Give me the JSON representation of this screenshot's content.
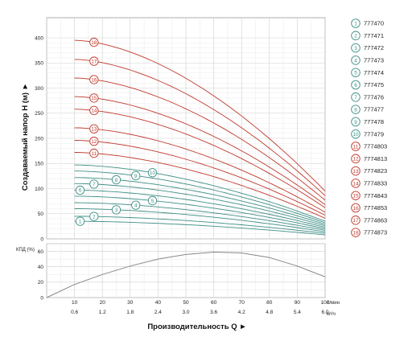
{
  "chart_data": [
    {
      "type": "line",
      "title": "",
      "ylabel": "Создаваемый напор H (м) ►",
      "xlabel": "",
      "x_unit": "л/мин",
      "ylim": [
        0,
        440
      ],
      "yticks": [
        "0",
        "50",
        "100",
        "150",
        "200",
        "250",
        "300",
        "350",
        "400"
      ],
      "xlim": [
        0,
        100
      ],
      "grid": true,
      "legend_position": "right",
      "colors": {
        "green_series": "#3f8f86",
        "red_series": "#c0392b"
      },
      "series": [
        {
          "name": "777470",
          "marker": "1",
          "color": "#3f8f86",
          "x": [
            10,
            100
          ],
          "y": [
            35,
            8
          ]
        },
        {
          "name": "777471",
          "marker": "2",
          "color": "#3f8f86",
          "x": [
            10,
            100
          ],
          "y": [
            45,
            11
          ]
        },
        {
          "name": "777472",
          "marker": "3",
          "color": "#3f8f86",
          "x": [
            10,
            100
          ],
          "y": [
            60,
            14
          ]
        },
        {
          "name": "777473",
          "marker": "4",
          "color": "#3f8f86",
          "x": [
            10,
            100
          ],
          "y": [
            72,
            17
          ]
        },
        {
          "name": "777474",
          "marker": "5",
          "color": "#3f8f86",
          "x": [
            10,
            100
          ],
          "y": [
            85,
            20
          ]
        },
        {
          "name": "777475",
          "marker": "6",
          "color": "#3f8f86",
          "x": [
            10,
            100
          ],
          "y": [
            97,
            23
          ]
        },
        {
          "name": "777476",
          "marker": "7",
          "color": "#3f8f86",
          "x": [
            10,
            100
          ],
          "y": [
            110,
            26
          ]
        },
        {
          "name": "777477",
          "marker": "8",
          "color": "#3f8f86",
          "x": [
            10,
            100
          ],
          "y": [
            122,
            29
          ]
        },
        {
          "name": "777478",
          "marker": "9",
          "color": "#3f8f86",
          "x": [
            10,
            100
          ],
          "y": [
            135,
            32
          ]
        },
        {
          "name": "777479",
          "marker": "10",
          "color": "#3f8f86",
          "x": [
            10,
            100
          ],
          "y": [
            147,
            35
          ]
        },
        {
          "name": "7774803",
          "marker": "11",
          "color": "#c0392b",
          "x": [
            10,
            100
          ],
          "y": [
            172,
            41
          ]
        },
        {
          "name": "7774813",
          "marker": "12",
          "color": "#c0392b",
          "x": [
            10,
            100
          ],
          "y": [
            196,
            47
          ]
        },
        {
          "name": "7774823",
          "marker": "13",
          "color": "#c0392b",
          "x": [
            10,
            100
          ],
          "y": [
            221,
            53
          ]
        },
        {
          "name": "7774833",
          "marker": "14",
          "color": "#c0392b",
          "x": [
            10,
            100
          ],
          "y": [
            258,
            62
          ]
        },
        {
          "name": "7774843",
          "marker": "15",
          "color": "#c0392b",
          "x": [
            10,
            100
          ],
          "y": [
            283,
            68
          ]
        },
        {
          "name": "7774853",
          "marker": "16",
          "color": "#c0392b",
          "x": [
            10,
            100
          ],
          "y": [
            320,
            77
          ]
        },
        {
          "name": "7774863",
          "marker": "17",
          "color": "#c0392b",
          "x": [
            10,
            100
          ],
          "y": [
            357,
            86
          ]
        },
        {
          "name": "7774873",
          "marker": "18",
          "color": "#c0392b",
          "x": [
            10,
            100
          ],
          "y": [
            395,
            95
          ]
        }
      ],
      "marker_positions_x": [
        12,
        17,
        25,
        32,
        38,
        12,
        17,
        25,
        32,
        38,
        17,
        17,
        17,
        17,
        17,
        17,
        17,
        17
      ]
    },
    {
      "type": "line",
      "title": "",
      "ylabel": "КПД (%)",
      "xlabel": "Производительность Q ►",
      "ylim": [
        0,
        70
      ],
      "yticks": [
        "0",
        "20",
        "40",
        "60"
      ],
      "xlim": [
        0,
        100
      ],
      "xticks": [
        "10",
        "20",
        "30",
        "40",
        "50",
        "60",
        "70",
        "80",
        "90",
        "100"
      ],
      "x_unit": "л/мин",
      "x2ticks": [
        "0.6",
        "1.2",
        "1.8",
        "2.4",
        "3.0",
        "3.6",
        "4.2",
        "4.8",
        "5.4",
        "6.0"
      ],
      "x2_unit": "м³/ч",
      "grid": true,
      "series": [
        {
          "name": "",
          "color": "#888888",
          "x": [
            0,
            10,
            20,
            30,
            40,
            50,
            60,
            70,
            80,
            90,
            100
          ],
          "y": [
            0,
            17,
            30,
            41,
            50,
            56,
            59,
            58,
            52,
            41,
            27
          ]
        }
      ]
    }
  ]
}
